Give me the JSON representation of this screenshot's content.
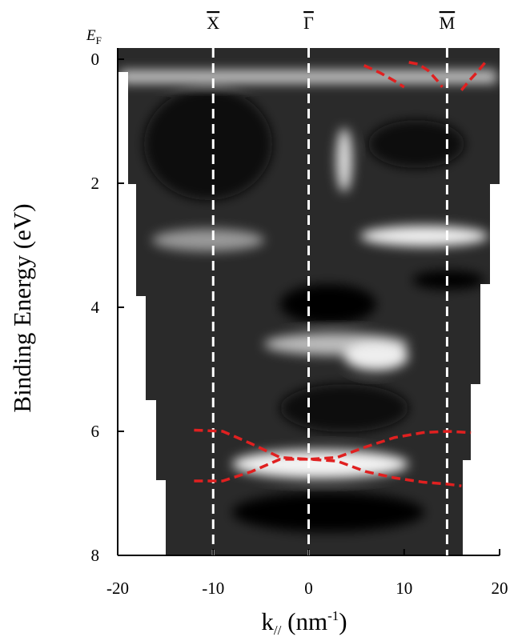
{
  "chart_data": {
    "type": "line",
    "y_label": "Binding Energy (eV)",
    "x_label": [
      "k",
      "//",
      " (nm",
      "-1",
      ")"
    ],
    "fermi_label": [
      "E",
      "F"
    ],
    "xlim": [
      -20,
      20
    ],
    "xticks": [
      -20,
      -10,
      0,
      10,
      20
    ],
    "ylim": [
      8,
      0
    ],
    "yticks": [
      0,
      2,
      4,
      6,
      8
    ],
    "symmetry_points": [
      {
        "label": "X",
        "k": -10
      },
      {
        "label": "Γ",
        "k": 0
      },
      {
        "label": "M",
        "k": 14.5
      }
    ],
    "series": [
      {
        "color": "#e02020",
        "x": [
          -12,
          -9,
          -6,
          -3,
          0,
          3,
          6,
          9,
          12,
          14.5,
          17
        ],
        "values": [
          5.98,
          6.0,
          6.2,
          6.42,
          6.45,
          6.42,
          6.25,
          6.1,
          6.02,
          6.0,
          6.02
        ]
      },
      {
        "color": "#e02020",
        "x": [
          -12,
          -9,
          -6,
          -3,
          0,
          3,
          6,
          9,
          12,
          14.5,
          16
        ],
        "values": [
          6.8,
          6.8,
          6.65,
          6.45,
          6.45,
          6.48,
          6.65,
          6.75,
          6.82,
          6.85,
          6.88
        ]
      },
      {
        "color": "#e02020",
        "x": [
          5.8,
          7.5,
          9,
          10
        ],
        "values": [
          0.1,
          0.22,
          0.35,
          0.45
        ]
      },
      {
        "color": "#e02020",
        "x": [
          10.5,
          11.5,
          12.5,
          13.5,
          14
        ],
        "values": [
          0.05,
          0.08,
          0.18,
          0.35,
          0.45
        ]
      },
      {
        "color": "#e02020",
        "x": [
          16,
          16.8,
          17.7,
          18.5
        ],
        "values": [
          0.5,
          0.35,
          0.2,
          0.05
        ]
      }
    ]
  }
}
